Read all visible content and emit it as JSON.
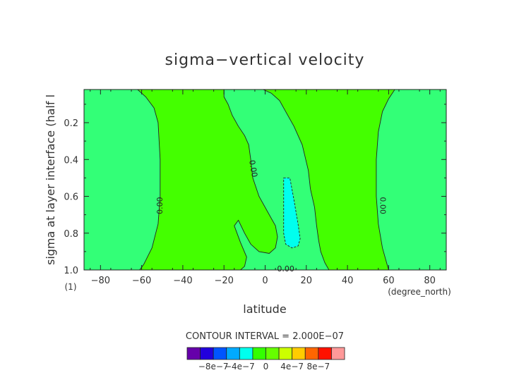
{
  "chart_data": {
    "type": "heatmap",
    "title": "sigma−vertical velocity",
    "xlabel": "latitude",
    "xunit": "(degree_north)",
    "ylabel": "sigma at layer interface (half l",
    "yunit": "(1)",
    "xlim": [
      -88,
      88
    ],
    "ylim": [
      0.02,
      1.0
    ],
    "y_reversed": true,
    "xticks": [
      -80,
      -60,
      -40,
      -20,
      0,
      20,
      40,
      60,
      80
    ],
    "yticks": [
      0.2,
      0.4,
      0.6,
      0.8,
      1.0
    ],
    "xtick_labels": [
      "−80",
      "−60",
      "−40",
      "−20",
      "0",
      "20",
      "40",
      "60",
      "80"
    ],
    "ytick_labels": [
      "0.2",
      "0.4",
      "0.6",
      "0.8",
      "1.0"
    ],
    "grid": false,
    "contour_interval_text": "CONTOUR INTERVAL = 2.000E−07",
    "contour_labels": [
      "0.00",
      "0.00",
      "0.00",
      "0.00"
    ],
    "colorbar": {
      "levels": [
        -1e-06,
        -8e-07,
        -6e-07,
        -4e-07,
        -2e-07,
        0,
        2e-07,
        4e-07,
        6e-07,
        8e-07,
        1e-06
      ],
      "colors": [
        "#6600aa",
        "#2200dd",
        "#0055ff",
        "#00aaff",
        "#00ffee",
        "#33ff00",
        "#66ff00",
        "#ccff00",
        "#ffcc00",
        "#ff6600",
        "#ff1100",
        "#ff9999"
      ],
      "tick_labels": [
        "−8e−7",
        "−4e−7",
        "0",
        "4e−7",
        "8e−7"
      ],
      "tick_values": [
        -8e-07,
        -4e-07,
        0,
        4e-07,
        8e-07
      ]
    },
    "colors": {
      "below_zero": "#33ff77",
      "above_zero": "#44ff00",
      "negative_core": "#00ffee",
      "contour": "#222222"
    },
    "regions": [
      {
        "name": "west-region",
        "band": "0 to -2e-7",
        "color_key": "below_zero",
        "polygon": [
          [
            -88,
            0.02
          ],
          [
            -62,
            0.02
          ],
          [
            -58,
            0.06
          ],
          [
            -54,
            0.12
          ],
          [
            -52,
            0.2
          ],
          [
            -51,
            0.4
          ],
          [
            -51,
            0.6
          ],
          [
            -52,
            0.75
          ],
          [
            -55,
            0.88
          ],
          [
            -59,
            0.97
          ],
          [
            -61,
            1.0
          ],
          [
            -88,
            1.0
          ]
        ]
      },
      {
        "name": "central-region",
        "band": "0 to -2e-7",
        "color_key": "below_zero",
        "polygon": [
          [
            -4,
            0.02
          ],
          [
            -1,
            0.02
          ],
          [
            3,
            0.04
          ],
          [
            7,
            0.08
          ],
          [
            10,
            0.14
          ],
          [
            14,
            0.22
          ],
          [
            18,
            0.32
          ],
          [
            21,
            0.46
          ],
          [
            22,
            0.56
          ],
          [
            24,
            0.66
          ],
          [
            25,
            0.76
          ],
          [
            26,
            0.84
          ],
          [
            27,
            0.9
          ],
          [
            29,
            0.96
          ],
          [
            31,
            1.0
          ],
          [
            -12,
            1.0
          ],
          [
            -10,
            0.98
          ],
          [
            -9,
            0.93
          ],
          [
            -12,
            0.85
          ],
          [
            -15,
            0.76
          ],
          [
            -13,
            0.73
          ],
          [
            -10,
            0.8
          ],
          [
            -7,
            0.86
          ],
          [
            -3,
            0.9
          ],
          [
            2,
            0.91
          ],
          [
            5,
            0.88
          ],
          [
            6,
            0.82
          ],
          [
            5,
            0.76
          ],
          [
            1,
            0.68
          ],
          [
            -3,
            0.6
          ],
          [
            -6,
            0.5
          ],
          [
            -7,
            0.4
          ],
          [
            -8,
            0.32
          ],
          [
            -10,
            0.27
          ],
          [
            -13,
            0.22
          ],
          [
            -16,
            0.16
          ],
          [
            -18,
            0.1
          ],
          [
            -20,
            0.06
          ],
          [
            -20,
            0.02
          ]
        ]
      },
      {
        "name": "east-region",
        "band": "0 to -2e-7",
        "color_key": "below_zero",
        "polygon": [
          [
            63,
            0.02
          ],
          [
            88,
            0.02
          ],
          [
            88,
            1.0
          ],
          [
            60,
            1.0
          ],
          [
            57,
            0.88
          ],
          [
            55,
            0.75
          ],
          [
            54,
            0.6
          ],
          [
            54,
            0.4
          ],
          [
            55,
            0.25
          ],
          [
            57,
            0.14
          ],
          [
            60,
            0.07
          ]
        ]
      },
      {
        "name": "negative-core",
        "band": "-2e-7 to -4e-7",
        "color_key": "negative_core",
        "polygon": [
          [
            9,
            0.5
          ],
          [
            12,
            0.5
          ],
          [
            14,
            0.62
          ],
          [
            16,
            0.75
          ],
          [
            17,
            0.83
          ],
          [
            16,
            0.87
          ],
          [
            13,
            0.88
          ],
          [
            10,
            0.86
          ],
          [
            9,
            0.8
          ],
          [
            9,
            0.7
          ],
          [
            9,
            0.6
          ]
        ]
      }
    ]
  }
}
